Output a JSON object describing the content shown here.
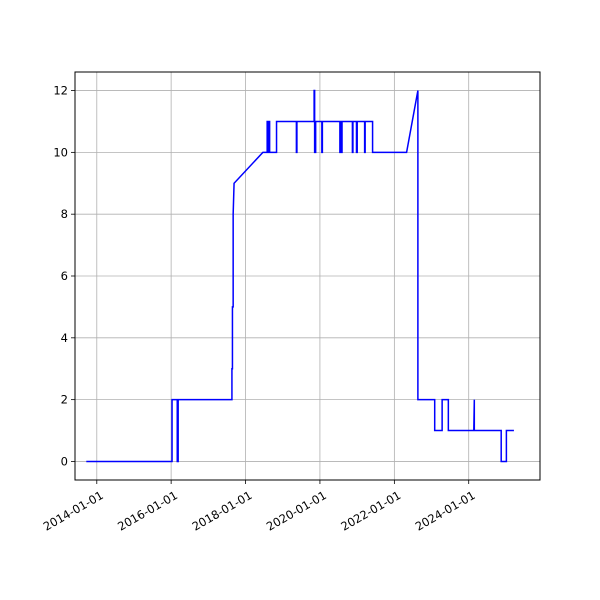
{
  "chart_data": {
    "type": "line",
    "title": "",
    "xlabel": "",
    "ylabel": "",
    "x_axis_type": "date",
    "xlim": [
      "2013-06-01",
      "2025-12-01"
    ],
    "ylim": [
      -0.6,
      12.6
    ],
    "grid": true,
    "line_color": "#0000ff",
    "x_ticks": [
      "2014-01-01",
      "2016-01-01",
      "2018-01-01",
      "2020-01-01",
      "2022-01-01",
      "2024-01-01"
    ],
    "x_tick_labels": [
      "2014-01-01",
      "2016-01-01",
      "2018-01-01",
      "2020-01-01",
      "2022-01-01",
      "2024-01-01"
    ],
    "y_ticks": [
      0,
      2,
      4,
      6,
      8,
      10,
      12
    ],
    "y_tick_labels": [
      "0",
      "2",
      "4",
      "6",
      "8",
      "10",
      "12"
    ],
    "series": [
      {
        "x": [
          "2013-09-20",
          "2016-01-10",
          "2016-01-10",
          "2016-03-01",
          "2016-03-01",
          "2016-03-10",
          "2016-03-10",
          "2017-08-20",
          "2017-08-20",
          "2017-08-25",
          "2017-08-25",
          "2017-09-01",
          "2017-09-01",
          "2017-09-10",
          "2017-09-10",
          "2018-06-20",
          "2018-06-20",
          "2018-08-01",
          "2018-08-01",
          "2018-08-10",
          "2018-08-10",
          "2018-08-15",
          "2018-08-15",
          "2018-08-25",
          "2018-08-25",
          "2018-11-01",
          "2018-11-01",
          "2018-11-05",
          "2018-11-05",
          "2019-05-15",
          "2019-05-15",
          "2019-05-20",
          "2019-05-20",
          "2019-11-05",
          "2019-11-05",
          "2019-11-10",
          "2019-11-10",
          "2019-11-20",
          "2019-11-20",
          "2020-01-20",
          "2020-01-20",
          "2020-01-25",
          "2020-01-25",
          "2020-07-15",
          "2020-07-15",
          "2020-07-20",
          "2020-07-20",
          "2020-08-01",
          "2020-08-01",
          "2020-08-05",
          "2020-08-05",
          "2020-11-15",
          "2020-11-15",
          "2020-11-20",
          "2020-11-20",
          "2020-12-25",
          "2020-12-25",
          "2021-01-01",
          "2021-01-01",
          "2021-03-15",
          "2021-03-15",
          "2021-03-20",
          "2021-03-20",
          "2021-06-01",
          "2021-06-01",
          "2021-06-05",
          "2021-06-05",
          "2022-05-01",
          "2022-08-20",
          "2022-08-20",
          "2023-02-01",
          "2023-02-01",
          "2023-04-15",
          "2023-04-15",
          "2023-06-15",
          "2023-06-15",
          "2024-02-20",
          "2024-02-20",
          "2024-02-25",
          "2024-02-25",
          "2024-11-15",
          "2024-11-15",
          "2025-01-05",
          "2025-01-05",
          "2025-03-20"
        ],
        "y": [
          0,
          0,
          2,
          2,
          0,
          0,
          2,
          2,
          3,
          3,
          5,
          5,
          8,
          9,
          9,
          10,
          10,
          10,
          11,
          11,
          10,
          10,
          11,
          11,
          10,
          10,
          11,
          11,
          11,
          11,
          10,
          10,
          11,
          11,
          12,
          12,
          10,
          10,
          11,
          11,
          10,
          10,
          11,
          11,
          10,
          10,
          11,
          11,
          10,
          10,
          11,
          11,
          10,
          10,
          11,
          11,
          10,
          10,
          11,
          11,
          10,
          10,
          11,
          11,
          10,
          10,
          10,
          10,
          12,
          2,
          2,
          1,
          1,
          2,
          2,
          1,
          1,
          1,
          2,
          1,
          1,
          0,
          0,
          1,
          1
        ]
      }
    ]
  }
}
